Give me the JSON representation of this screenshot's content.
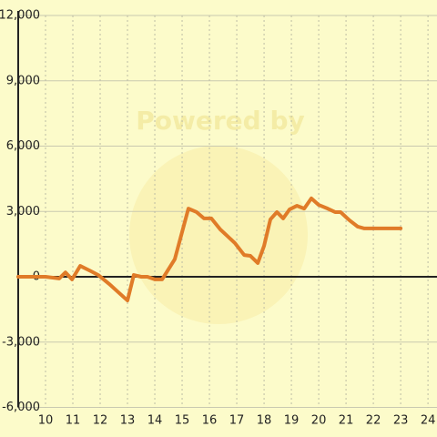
{
  "chart_data": {
    "type": "line",
    "watermark": "Powered by",
    "x": [
      9,
      10,
      10.5,
      10.73,
      10.97,
      11.27,
      11.67,
      11.93,
      12.33,
      13,
      13.23,
      13.5,
      13.73,
      14,
      14.27,
      14.73,
      15.23,
      15.53,
      15.8,
      16.07,
      16.4,
      16.93,
      17.27,
      17.5,
      17.77,
      18,
      18.23,
      18.47,
      18.7,
      18.93,
      19.2,
      19.47,
      19.73,
      20,
      20.33,
      20.6,
      20.8,
      21.13,
      21.43,
      21.67,
      23
    ],
    "series": [
      {
        "color": "#e07b28",
        "values": [
          0,
          0,
          -80,
          200,
          -120,
          500,
          250,
          80,
          -330,
          -1090,
          80,
          0,
          0,
          -120,
          -120,
          800,
          3130,
          2970,
          2680,
          2680,
          2170,
          1550,
          1000,
          960,
          630,
          1420,
          2630,
          2970,
          2680,
          3090,
          3260,
          3130,
          3600,
          3300,
          3130,
          2970,
          2970,
          2590,
          2300,
          2220,
          2220
        ]
      }
    ],
    "xlim": [
      9,
      24.33
    ],
    "ylim": [
      -6000,
      12000
    ],
    "xticks": [
      10,
      11,
      12,
      13,
      14,
      15,
      16,
      17,
      18,
      19,
      20,
      21,
      22,
      23,
      24
    ],
    "yticks": [
      {
        "value": -6000,
        "label": "-6,000"
      },
      {
        "value": -3000,
        "label": "-3,000"
      },
      0,
      {
        "value": 3000,
        "label": "3,000"
      },
      {
        "value": 6000,
        "label": "6,000"
      },
      {
        "value": 9000,
        "label": "9,000"
      },
      {
        "value": 12000,
        "label": "12,000"
      }
    ],
    "grid": true
  }
}
